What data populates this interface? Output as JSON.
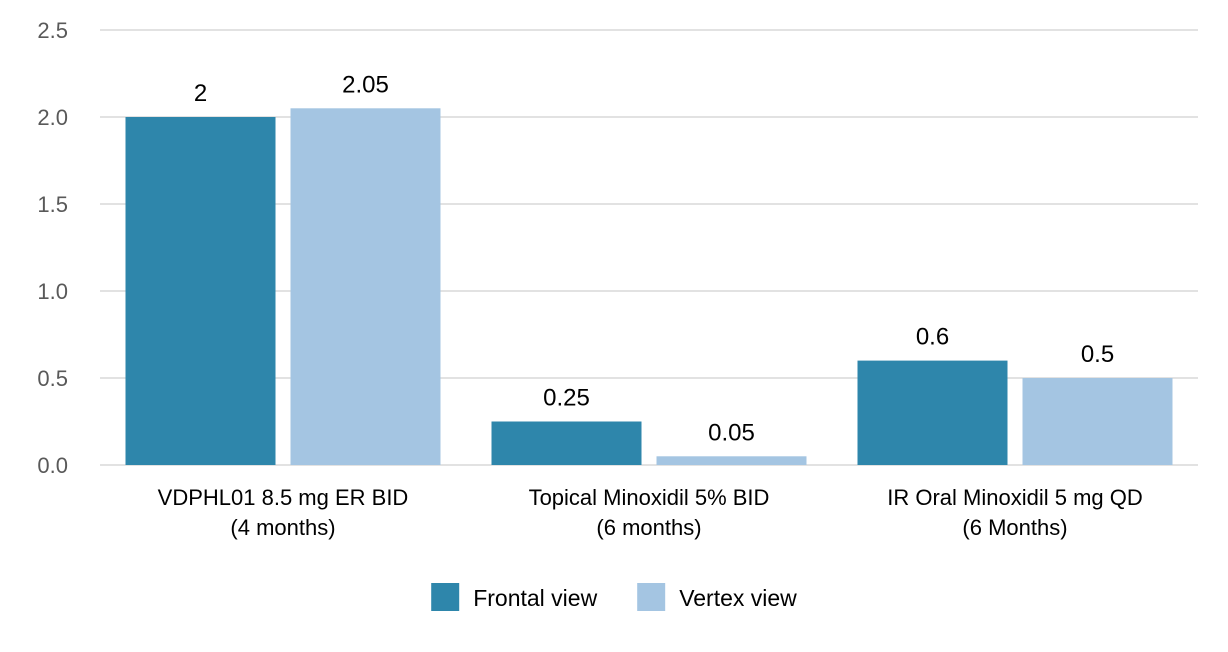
{
  "chart_data": {
    "type": "bar",
    "categories": [
      [
        "VDPHL01 8.5 mg ER BID",
        "(4 months)"
      ],
      [
        "Topical Minoxidil 5% BID",
        "(6 months)"
      ],
      [
        "IR Oral Minoxidil 5 mg QD",
        "(6 Months)"
      ]
    ],
    "series": [
      {
        "name": "Frontal view",
        "color": "#2e86ab",
        "values": [
          2,
          0.25,
          0.6
        ],
        "labels": [
          "2",
          "0.25",
          "0.6"
        ]
      },
      {
        "name": "Vertex view",
        "color": "#a4c5e2",
        "values": [
          2.05,
          0.05,
          0.5
        ],
        "labels": [
          "2.05",
          "0.05",
          "0.5"
        ]
      }
    ],
    "title": "",
    "xlabel": "",
    "ylabel": "",
    "ylim": [
      0,
      2.5
    ],
    "yticks": [
      0,
      0.5,
      1,
      1.5,
      2,
      2.5
    ],
    "ytick_labels": [
      "0.0",
      "0.5",
      "1.0",
      "1.5",
      "2.0",
      "2.5"
    ],
    "grid": true,
    "legend_position": "bottom"
  }
}
